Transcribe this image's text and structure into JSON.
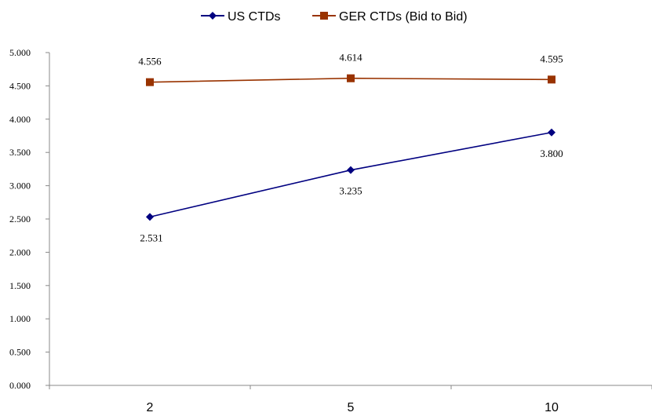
{
  "chart_data": {
    "type": "line",
    "categories": [
      "2",
      "5",
      "10"
    ],
    "x": [
      2,
      5,
      10
    ],
    "ylim": [
      0,
      5
    ],
    "yticks": [
      "0.000",
      "0.500",
      "1.000",
      "1.500",
      "2.000",
      "2.500",
      "3.000",
      "3.500",
      "4.000",
      "4.500",
      "5.000"
    ],
    "grid": false,
    "legend_position": "top",
    "series": [
      {
        "name": "US CTDs",
        "values": [
          2.531,
          3.235,
          3.8
        ],
        "labels": [
          "2.531",
          "3.235",
          "3.800"
        ],
        "color": "#000080",
        "marker": "diamond"
      },
      {
        "name": "GER CTDs (Bid to Bid)",
        "values": [
          4.556,
          4.614,
          4.595
        ],
        "labels": [
          "4.556",
          "4.614",
          "4.595"
        ],
        "color": "#993300",
        "marker": "square"
      }
    ]
  }
}
